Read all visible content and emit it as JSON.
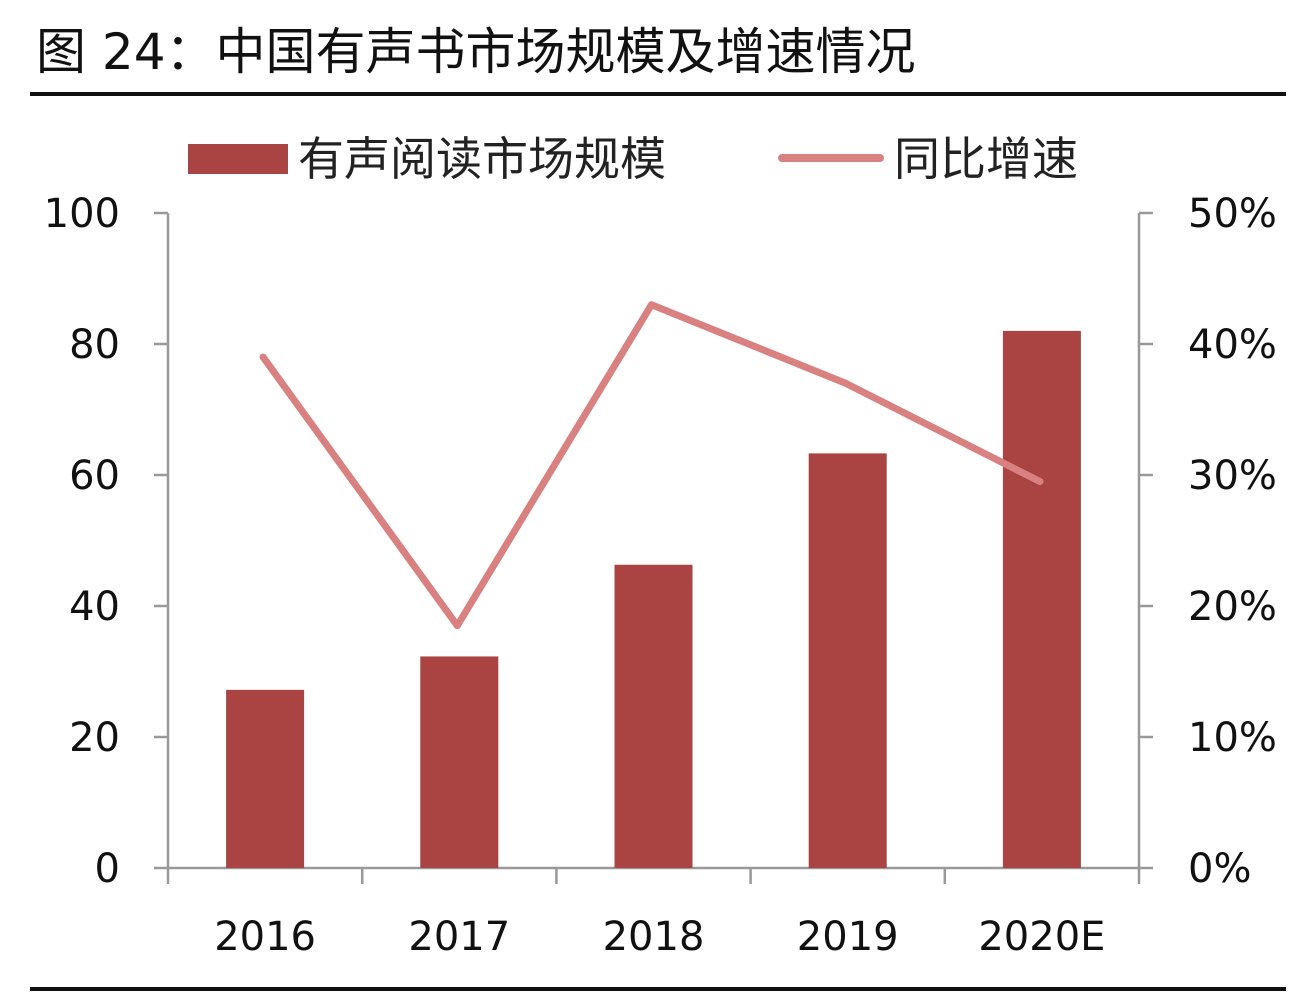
{
  "figure_title": "图 24：中国有声书市场规模及增速情况",
  "colors": {
    "bar": "#a94442",
    "line": "#d98080",
    "axis": "#999999",
    "text": "#111111"
  },
  "chart_data": {
    "type": "bar",
    "categories": [
      "2016",
      "2017",
      "2018",
      "2019",
      "2020E"
    ],
    "series": [
      {
        "name": "有声阅读市场规模",
        "type": "bar",
        "axis": "left",
        "values": [
          27.2,
          32.3,
          46.3,
          63.3,
          82.0
        ]
      },
      {
        "name": "同比增速",
        "type": "line",
        "axis": "right",
        "values": [
          0.39,
          0.185,
          0.43,
          0.37,
          0.295
        ]
      }
    ],
    "y_left": {
      "ylim": [
        0,
        100
      ],
      "ticks": [
        0,
        20,
        40,
        60,
        80,
        100
      ],
      "tick_labels": [
        "0",
        "20",
        "40",
        "60",
        "80",
        "100"
      ]
    },
    "y_right": {
      "ylim": [
        0,
        0.5
      ],
      "ticks": [
        0,
        0.1,
        0.2,
        0.3,
        0.4,
        0.5
      ],
      "tick_labels": [
        "0%",
        "10%",
        "20%",
        "30%",
        "40%",
        "50%"
      ]
    },
    "grid": false,
    "legend_position": "top"
  }
}
